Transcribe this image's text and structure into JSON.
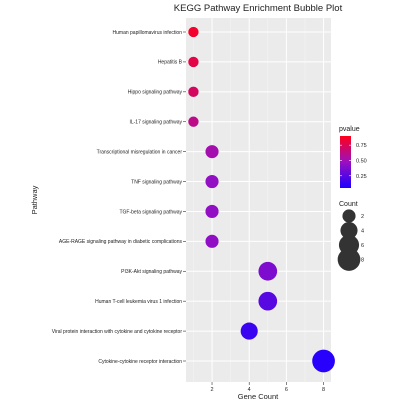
{
  "chart_data": {
    "type": "scatter",
    "title": "KEGG Pathway Enrichment Bubble Plot",
    "xlabel": "Gene Count",
    "ylabel": "Pathway",
    "xlim": [
      0.6,
      8.4
    ],
    "x_ticks": [
      "2",
      "4",
      "6",
      "8"
    ],
    "x_tick_values": [
      2,
      4,
      6,
      8
    ],
    "grid": true,
    "panel_background": "#ebebeb",
    "categories": [
      "Human papillomavirus infection",
      "Hepatitis B",
      "Hippo signaling pathway",
      "IL-17 signaling pathway",
      "Transcriptional misregulation in cancer",
      "TNF signaling pathway",
      "TGF-beta signaling pathway",
      "AGE-RAGE signaling pathway in diabetic complications",
      "PI3K-Akt signaling pathway",
      "Human T-cell leukemia virus 1 infection",
      "Viral protein interaction with cytokine and cytokine receptor",
      "Cytokine-cytokine receptor interaction"
    ],
    "points": [
      {
        "pathway": "Human papillomavirus infection",
        "count": 1,
        "pvalue": 0.85
      },
      {
        "pathway": "Hepatitis B",
        "count": 1,
        "pvalue": 0.78
      },
      {
        "pathway": "Hippo signaling pathway",
        "count": 1,
        "pvalue": 0.72
      },
      {
        "pathway": "IL-17 signaling pathway",
        "count": 1,
        "pvalue": 0.62
      },
      {
        "pathway": "Transcriptional misregulation in cancer",
        "count": 2,
        "pvalue": 0.52
      },
      {
        "pathway": "TNF signaling pathway",
        "count": 2,
        "pvalue": 0.45
      },
      {
        "pathway": "TGF-beta signaling pathway",
        "count": 2,
        "pvalue": 0.45
      },
      {
        "pathway": "AGE-RAGE signaling pathway in diabetic complications",
        "count": 2,
        "pvalue": 0.44
      },
      {
        "pathway": "PI3K-Akt signaling pathway",
        "count": 5,
        "pvalue": 0.38
      },
      {
        "pathway": "Human T-cell leukemia virus 1 infection",
        "count": 5,
        "pvalue": 0.25
      },
      {
        "pathway": "Viral protein interaction with cytokine and cytokine receptor",
        "count": 4,
        "pvalue": 0.15
      },
      {
        "pathway": "Cytokine-cytokine receptor interaction",
        "count": 8,
        "pvalue": 0.08
      }
    ],
    "color_legend": {
      "title": "pvalue",
      "ticks": [
        "0.75",
        "0.50",
        "0.25"
      ],
      "tick_values": [
        0.75,
        0.5,
        0.25
      ],
      "range": [
        0.05,
        0.9
      ],
      "low_color": "#1e00ff",
      "high_color": "#ff0019"
    },
    "size_legend": {
      "title": "Count",
      "labels": [
        "2",
        "4",
        "6",
        "8"
      ],
      "values": [
        2,
        4,
        6,
        8
      ]
    }
  }
}
